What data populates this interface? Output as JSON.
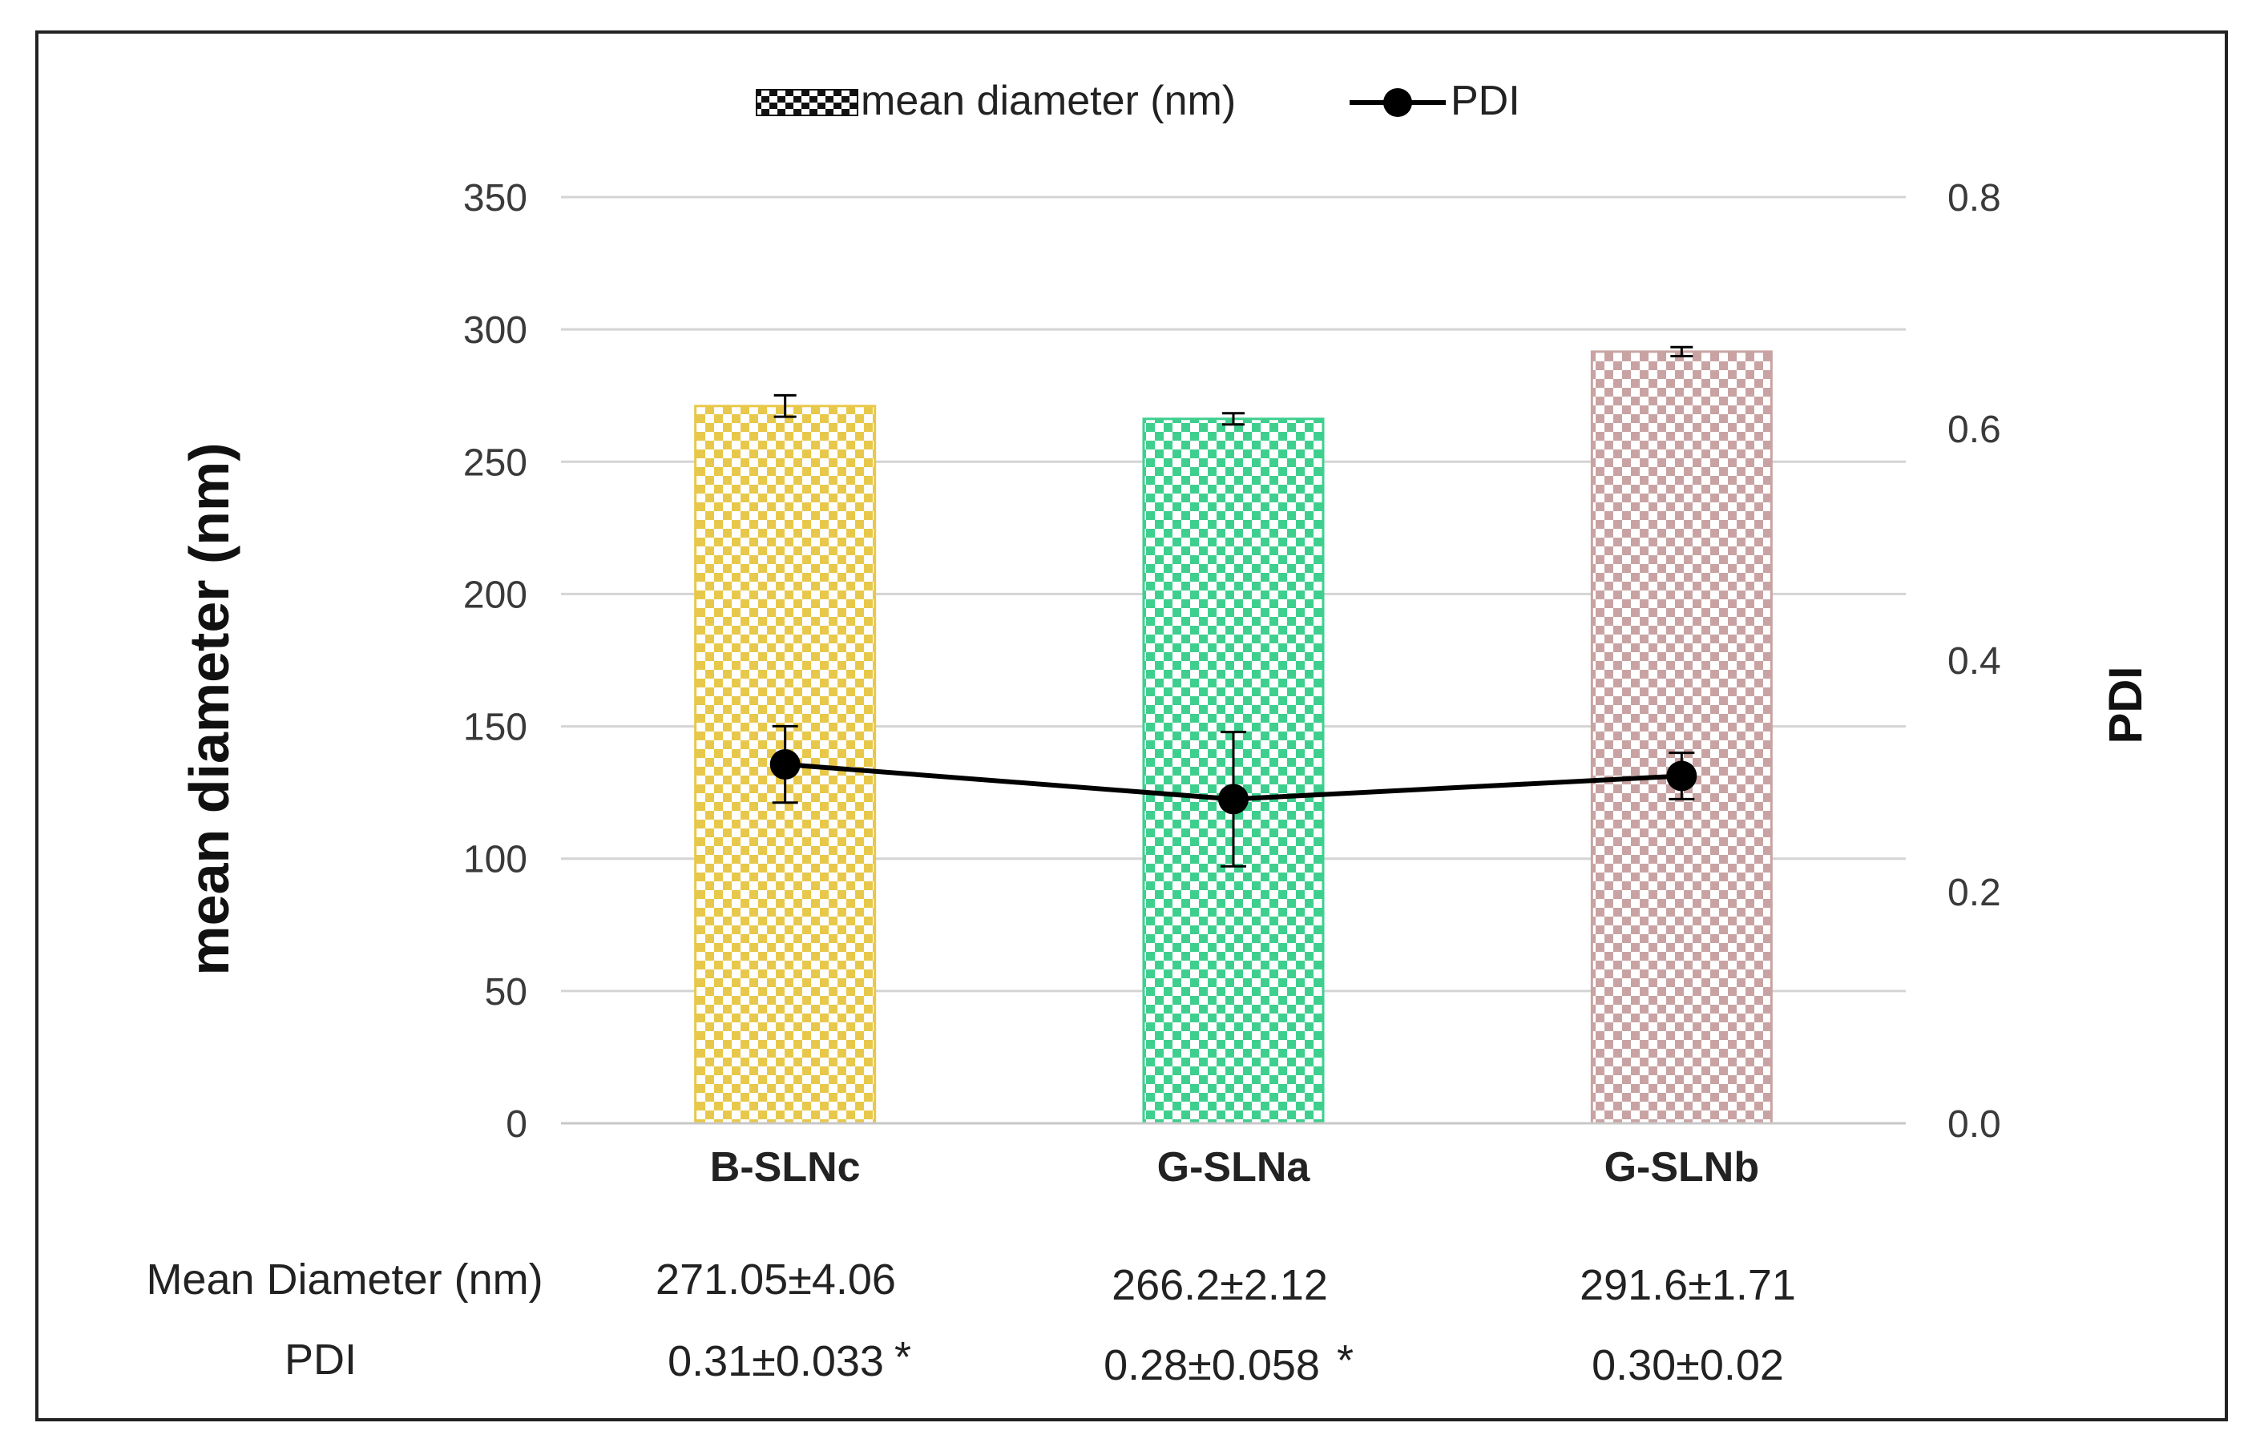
{
  "chart_data": {
    "type": "bar",
    "categories": [
      "B-SLNc",
      "G-SLNa",
      "G-SLNb"
    ],
    "series": [
      {
        "name": "mean diameter (nm)",
        "axis": "left",
        "values": [
          271.05,
          266.2,
          291.6
        ],
        "errors": [
          4.06,
          2.12,
          1.71
        ],
        "colors": [
          "#e8c84a",
          "#3ecf8e",
          "#c9a3a3"
        ]
      },
      {
        "name": "PDI",
        "axis": "right",
        "type": "line",
        "values": [
          0.31,
          0.28,
          0.3
        ],
        "errors": [
          0.033,
          0.058,
          0.02
        ],
        "color": "#000000"
      }
    ],
    "ylabel": "mean diameter (nm)",
    "y2label": "PDI",
    "ylim": [
      0,
      350
    ],
    "y2lim": [
      0,
      0.8
    ],
    "yticks": [
      "0",
      "50",
      "100",
      "150",
      "200",
      "250",
      "300",
      "350"
    ],
    "y2ticks": [
      "0.0",
      "0.2",
      "0.4",
      "0.6",
      "0.8"
    ],
    "grid": true,
    "legend_position": "top-center"
  },
  "table": {
    "rows": [
      {
        "label": "Mean Diameter  (nm)",
        "cells": [
          "271.05±4.06",
          "266.2±2.12",
          "291.6±1.71"
        ]
      },
      {
        "label": "PDI",
        "cells": [
          "0.31±0.033",
          "0.28±0.058",
          "0.30±0.02"
        ]
      }
    ],
    "marks": [
      "*",
      "*",
      ""
    ]
  }
}
